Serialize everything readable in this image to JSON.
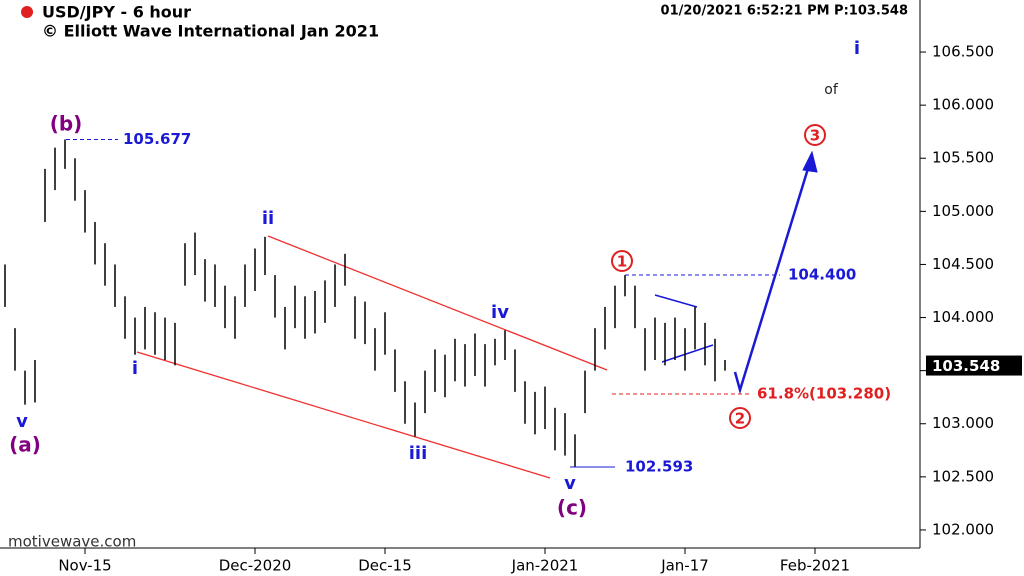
{
  "chart_data": {
    "type": "range-bar",
    "title": "USD/JPY - 6 hour",
    "subtitle": "© Elliott Wave International Jan 2021",
    "timestamp": "01/20/2021 6:52:21 PM  P:103.548",
    "footer": "motivewave.com",
    "color": "#000000",
    "categories": [
      null,
      null,
      null,
      null,
      null,
      null,
      null,
      null,
      "Nov-15",
      null,
      null,
      null,
      null,
      null,
      null,
      null,
      null,
      null,
      null,
      null,
      null,
      null,
      null,
      null,
      null,
      "Dec-2020",
      null,
      null,
      null,
      null,
      null,
      null,
      null,
      null,
      null,
      null,
      null,
      null,
      "Dec-15",
      null,
      null,
      null,
      null,
      null,
      null,
      null,
      null,
      null,
      null,
      null,
      null,
      null,
      null,
      null,
      "Jan-2021",
      null,
      null,
      null,
      null,
      null,
      null,
      null,
      null,
      null,
      null,
      null,
      null,
      null,
      "Jan-17",
      null,
      null,
      null,
      null,
      null,
      null,
      null,
      null,
      null,
      null,
      null,
      null,
      "Feb-2021",
      null,
      null,
      null,
      null,
      null,
      null,
      null,
      null,
      null,
      null
    ],
    "high": [
      104.5,
      103.9,
      103.5,
      103.6,
      105.4,
      105.6,
      105.677,
      105.5,
      105.2,
      104.9,
      104.7,
      104.5,
      104.2,
      104.0,
      104.1,
      104.05,
      104.0,
      103.95,
      104.7,
      104.8,
      104.55,
      104.5,
      104.3,
      104.2,
      104.5,
      104.65,
      104.76,
      104.4,
      104.1,
      104.3,
      104.2,
      104.25,
      104.35,
      104.5,
      104.6,
      104.2,
      104.15,
      103.9,
      104.05,
      103.7,
      103.4,
      103.2,
      103.5,
      103.7,
      103.65,
      103.8,
      103.75,
      103.85,
      103.75,
      103.8,
      103.88,
      103.7,
      103.4,
      103.3,
      103.35,
      103.15,
      103.1,
      102.9,
      103.5,
      103.9,
      104.1,
      104.3,
      104.4,
      104.3,
      103.9,
      104.0,
      103.95,
      104.0,
      103.9,
      104.1,
      103.95,
      103.8,
      103.6,
      null,
      null,
      null,
      null,
      null,
      null,
      null,
      null,
      null,
      null,
      null,
      null,
      null,
      null,
      null,
      null,
      null,
      null,
      null
    ],
    "low": [
      104.1,
      103.5,
      103.18,
      103.2,
      104.9,
      105.2,
      105.4,
      105.1,
      104.8,
      104.5,
      104.3,
      104.1,
      103.8,
      103.65,
      103.7,
      103.65,
      103.6,
      103.55,
      104.3,
      104.4,
      104.15,
      104.1,
      103.9,
      103.8,
      104.1,
      104.25,
      104.4,
      104.0,
      103.7,
      103.9,
      103.8,
      103.85,
      103.95,
      104.1,
      104.3,
      103.8,
      103.75,
      103.5,
      103.65,
      103.3,
      103.0,
      102.88,
      103.1,
      103.3,
      103.25,
      103.4,
      103.35,
      103.45,
      103.35,
      103.55,
      103.6,
      103.3,
      103.0,
      102.9,
      102.95,
      102.75,
      102.7,
      102.593,
      103.1,
      103.5,
      103.7,
      103.9,
      104.2,
      103.9,
      103.5,
      103.6,
      103.55,
      103.6,
      103.5,
      103.7,
      103.55,
      103.4,
      103.5,
      null,
      null,
      null,
      null,
      null,
      null,
      null,
      null,
      null,
      null,
      null,
      null,
      null,
      null,
      null,
      null,
      null,
      null,
      null
    ],
    "ylim": [
      101.83,
      106.99
    ],
    "yticks": [
      {
        "value": 102,
        "label": "102.000"
      },
      {
        "value": 102.5,
        "label": "102.500"
      },
      {
        "value": 103,
        "label": "103.000"
      },
      {
        "value": 103.5,
        "label": "103.500"
      },
      {
        "value": 104,
        "label": "104.000"
      },
      {
        "value": 104.5,
        "label": "104.500"
      },
      {
        "value": 105,
        "label": "105.000"
      },
      {
        "value": 105.5,
        "label": "105.500"
      },
      {
        "value": 106,
        "label": "106.000"
      },
      {
        "value": 106.5,
        "label": "106.500"
      }
    ],
    "last_price": {
      "value": 103.548,
      "label": "103.548"
    },
    "levels": [
      {
        "value": 105.677,
        "label": "105.677",
        "color": "#1a1ad6"
      },
      {
        "value": 104.4,
        "label": "104.400",
        "color": "#1a1ad6"
      },
      {
        "value": 102.593,
        "label": "102.593",
        "color": "#1a1ad6"
      },
      {
        "value": 103.28,
        "label": "61.8%(103.280)",
        "color": "#e02020"
      }
    ],
    "wave_labels": [
      {
        "text": "(b)",
        "color": "#800080"
      },
      {
        "text": "(a)",
        "color": "#800080"
      },
      {
        "text": "v",
        "color": "#1a1ad6"
      },
      {
        "text": "i",
        "color": "#1a1ad6"
      },
      {
        "text": "ii",
        "color": "#1a1ad6"
      },
      {
        "text": "iii",
        "color": "#1a1ad6"
      },
      {
        "text": "iv",
        "color": "#1a1ad6"
      },
      {
        "text": "v",
        "color": "#1a1ad6"
      },
      {
        "text": "(c)",
        "color": "#800080"
      },
      {
        "text": "1",
        "color": "#e02020"
      },
      {
        "text": "2",
        "color": "#e02020"
      },
      {
        "text": "3",
        "color": "#e02020"
      },
      {
        "text": "i",
        "color": "#1a1ad6"
      },
      {
        "text": "of",
        "color": "#222222"
      }
    ]
  }
}
